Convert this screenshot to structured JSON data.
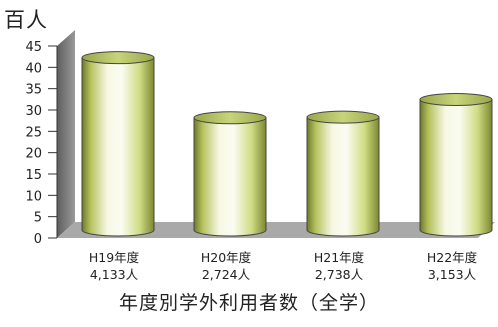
{
  "chart_data": {
    "type": "bar",
    "style": "3d-cylinder",
    "unit": "百人",
    "title": "年度別学外利用者数（全学）",
    "categories": [
      "H19年度",
      "H20年度",
      "H21年度",
      "H22年度"
    ],
    "category_values_text": [
      "4,133人",
      "2,724人",
      "2,738人",
      "3,153人"
    ],
    "values": [
      4133,
      2724,
      2738,
      3153
    ],
    "ylim": [
      0,
      45
    ],
    "yticks": [
      0,
      5,
      10,
      15,
      20,
      25,
      30,
      35,
      40,
      45
    ],
    "ylabel": "百人",
    "grid": false,
    "colors": {
      "bar_light": "#f4f7d6",
      "bar_mid": "#d3df8a",
      "bar_dark": "#6f7a28",
      "wall": "#7a7a7a",
      "floor": "#a8a8a8"
    }
  }
}
